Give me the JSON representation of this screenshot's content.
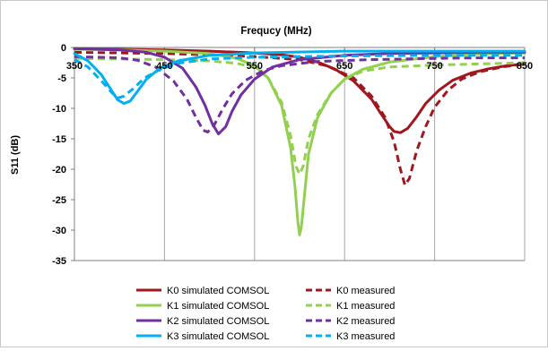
{
  "chart_data": {
    "type": "line",
    "title": "Frequcy (MHz)",
    "xlabel": "",
    "ylabel": "S11 (dB)",
    "xlim": [
      350,
      850
    ],
    "ylim": [
      -35,
      0
    ],
    "x_ticks": [
      350,
      450,
      550,
      650,
      750,
      850
    ],
    "x_tick_labels": [
      "350",
      "450",
      "550",
      "650",
      "750",
      "850"
    ],
    "y_ticks": [
      0,
      -5,
      -10,
      -15,
      -20,
      -25,
      -30,
      -35
    ],
    "y_tick_labels": [
      "0",
      "-5",
      "-10",
      "-15",
      "-20",
      "-25",
      "-30",
      "-35"
    ],
    "x_axis_position": "top",
    "grid": "vertical",
    "legend_position": "bottom",
    "series": [
      {
        "name": "K0 simulated COMSOL",
        "color": "#A0171E",
        "dash": false,
        "points": [
          [
            350,
            -0.2
          ],
          [
            400,
            -0.3
          ],
          [
            450,
            -0.4
          ],
          [
            500,
            -0.6
          ],
          [
            550,
            -0.9
          ],
          [
            580,
            -1.2
          ],
          [
            600,
            -1.6
          ],
          [
            620,
            -2.4
          ],
          [
            640,
            -3.6
          ],
          [
            660,
            -5.5
          ],
          [
            680,
            -8.5
          ],
          [
            690,
            -10.8
          ],
          [
            700,
            -13
          ],
          [
            705,
            -13.8
          ],
          [
            712,
            -14.0
          ],
          [
            720,
            -13.3
          ],
          [
            730,
            -11.4
          ],
          [
            740,
            -9.2
          ],
          [
            755,
            -7.0
          ],
          [
            770,
            -5.4
          ],
          [
            790,
            -4.2
          ],
          [
            810,
            -3.5
          ],
          [
            830,
            -3.0
          ],
          [
            850,
            -2.7
          ]
        ]
      },
      {
        "name": "K0 measured",
        "color": "#A0171E",
        "dash": true,
        "points": [
          [
            350,
            -0.8
          ],
          [
            400,
            -0.9
          ],
          [
            450,
            -1.0
          ],
          [
            500,
            -1.2
          ],
          [
            550,
            -1.5
          ],
          [
            600,
            -2.0
          ],
          [
            630,
            -3.0
          ],
          [
            660,
            -5.0
          ],
          [
            680,
            -8.0
          ],
          [
            695,
            -11.5
          ],
          [
            705,
            -15.5
          ],
          [
            712,
            -20.0
          ],
          [
            717,
            -22.6
          ],
          [
            722,
            -21.5
          ],
          [
            730,
            -17.0
          ],
          [
            740,
            -13.0
          ],
          [
            750,
            -9.8
          ],
          [
            765,
            -7.0
          ],
          [
            780,
            -5.2
          ],
          [
            800,
            -4.0
          ],
          [
            825,
            -3.2
          ],
          [
            850,
            -2.7
          ]
        ]
      },
      {
        "name": "K1 simulated COMSOL",
        "color": "#92D050",
        "dash": false,
        "points": [
          [
            350,
            -0.3
          ],
          [
            400,
            -0.4
          ],
          [
            450,
            -0.6
          ],
          [
            500,
            -1.0
          ],
          [
            530,
            -1.8
          ],
          [
            550,
            -3.0
          ],
          [
            565,
            -5.0
          ],
          [
            580,
            -9.5
          ],
          [
            590,
            -16.5
          ],
          [
            595,
            -23.0
          ],
          [
            598,
            -28.5
          ],
          [
            600,
            -30.8
          ],
          [
            602,
            -29.5
          ],
          [
            605,
            -25.0
          ],
          [
            610,
            -17.5
          ],
          [
            620,
            -11.5
          ],
          [
            635,
            -7.5
          ],
          [
            650,
            -5.2
          ],
          [
            670,
            -3.6
          ],
          [
            700,
            -2.4
          ],
          [
            750,
            -1.5
          ],
          [
            800,
            -1.1
          ],
          [
            850,
            -0.9
          ]
        ]
      },
      {
        "name": "K1 measured",
        "color": "#92D050",
        "dash": true,
        "points": [
          [
            350,
            -1.8
          ],
          [
            400,
            -1.9
          ],
          [
            450,
            -2.0
          ],
          [
            500,
            -2.2
          ],
          [
            530,
            -2.6
          ],
          [
            550,
            -3.3
          ],
          [
            565,
            -5.0
          ],
          [
            580,
            -9.0
          ],
          [
            590,
            -14.5
          ],
          [
            596,
            -19.5
          ],
          [
            600,
            -20.8
          ],
          [
            604,
            -19.5
          ],
          [
            610,
            -15.0
          ],
          [
            620,
            -11.0
          ],
          [
            635,
            -7.5
          ],
          [
            650,
            -5.2
          ],
          [
            670,
            -3.9
          ],
          [
            700,
            -3.2
          ],
          [
            750,
            -2.9
          ],
          [
            800,
            -2.7
          ],
          [
            850,
            -2.5
          ]
        ]
      },
      {
        "name": "K2 simulated COMSOL",
        "color": "#7030A0",
        "dash": false,
        "points": [
          [
            350,
            -0.2
          ],
          [
            400,
            -0.4
          ],
          [
            430,
            -0.8
          ],
          [
            450,
            -1.6
          ],
          [
            470,
            -3.4
          ],
          [
            485,
            -6.5
          ],
          [
            495,
            -9.5
          ],
          [
            503,
            -12.5
          ],
          [
            510,
            -14.2
          ],
          [
            518,
            -13.0
          ],
          [
            525,
            -10.5
          ],
          [
            535,
            -7.8
          ],
          [
            550,
            -5.2
          ],
          [
            570,
            -3.2
          ],
          [
            600,
            -2.0
          ],
          [
            650,
            -1.3
          ],
          [
            700,
            -1.0
          ],
          [
            750,
            -0.9
          ],
          [
            800,
            -0.8
          ],
          [
            850,
            -0.8
          ]
        ]
      },
      {
        "name": "K2 measured",
        "color": "#7030A0",
        "dash": true,
        "points": [
          [
            350,
            -1.5
          ],
          [
            400,
            -1.7
          ],
          [
            420,
            -2.1
          ],
          [
            440,
            -3.2
          ],
          [
            460,
            -5.5
          ],
          [
            475,
            -8.5
          ],
          [
            485,
            -11.5
          ],
          [
            493,
            -13.6
          ],
          [
            498,
            -13.9
          ],
          [
            505,
            -12.8
          ],
          [
            515,
            -10.0
          ],
          [
            525,
            -7.6
          ],
          [
            540,
            -5.4
          ],
          [
            560,
            -3.8
          ],
          [
            580,
            -3.0
          ],
          [
            620,
            -2.3
          ],
          [
            680,
            -2.0
          ],
          [
            750,
            -1.8
          ],
          [
            800,
            -1.7
          ],
          [
            850,
            -1.7
          ]
        ]
      },
      {
        "name": "K3 simulated COMSOL",
        "color": "#00B0F0",
        "dash": false,
        "points": [
          [
            350,
            -1.0
          ],
          [
            365,
            -2.2
          ],
          [
            380,
            -4.5
          ],
          [
            390,
            -6.8
          ],
          [
            398,
            -8.6
          ],
          [
            405,
            -9.2
          ],
          [
            412,
            -8.8
          ],
          [
            420,
            -7.2
          ],
          [
            430,
            -5.2
          ],
          [
            445,
            -3.4
          ],
          [
            465,
            -2.2
          ],
          [
            500,
            -1.3
          ],
          [
            550,
            -0.9
          ],
          [
            650,
            -0.6
          ],
          [
            750,
            -0.6
          ],
          [
            850,
            -0.6
          ]
        ]
      },
      {
        "name": "K3 measured",
        "color": "#00B0F0",
        "dash": true,
        "points": [
          [
            350,
            -2.0
          ],
          [
            365,
            -3.2
          ],
          [
            380,
            -5.5
          ],
          [
            392,
            -7.5
          ],
          [
            398,
            -8.3
          ],
          [
            405,
            -8.0
          ],
          [
            415,
            -6.8
          ],
          [
            428,
            -5.0
          ],
          [
            445,
            -3.6
          ],
          [
            465,
            -2.6
          ],
          [
            500,
            -1.9
          ],
          [
            550,
            -1.6
          ],
          [
            650,
            -1.4
          ],
          [
            750,
            -1.3
          ],
          [
            850,
            -1.3
          ]
        ]
      }
    ]
  }
}
